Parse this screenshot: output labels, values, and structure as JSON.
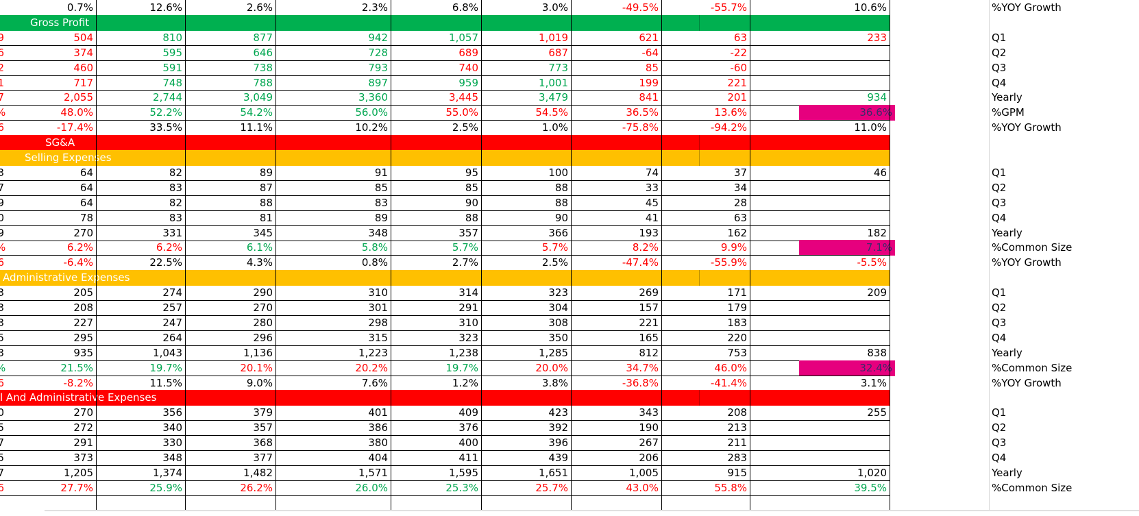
{
  "colors": {
    "green": "#00a650",
    "red": "#ff0000",
    "orange": "#ffc000",
    "black": "#000000",
    "highlight": "#e6007e",
    "banner_green": "#00b050",
    "banner_red": "#ff0000",
    "banner_orange": "#ffc000"
  },
  "rows": [
    {
      "kind": "data",
      "cells": [
        [
          "0.7%",
          "k"
        ],
        [
          "12.6%",
          "k"
        ],
        [
          "2.6%",
          "k"
        ],
        [
          "2.3%",
          "k"
        ],
        [
          "6.8%",
          "k"
        ],
        [
          "3.0%",
          "k"
        ],
        [
          "-49.5%",
          "r"
        ],
        [
          "-55.7%",
          "r"
        ],
        [
          "10.6%",
          "k"
        ]
      ],
      "label": "%YOY Growth",
      "edge": "",
      "bottom_border": false
    },
    {
      "kind": "banner",
      "text": "Gross Profit",
      "color": "banner_green",
      "text_left": 44
    },
    {
      "kind": "data",
      "cells": [
        [
          "504",
          "r"
        ],
        [
          "810",
          "g"
        ],
        [
          "877",
          "g"
        ],
        [
          "942",
          "g"
        ],
        [
          "1,057",
          "g"
        ],
        [
          "1,019",
          "r"
        ],
        [
          "621",
          "r"
        ],
        [
          "63",
          "r"
        ],
        [
          "233",
          "r"
        ]
      ],
      "label": "Q1",
      "edge": "9"
    },
    {
      "kind": "data",
      "cells": [
        [
          "374",
          "r"
        ],
        [
          "595",
          "g"
        ],
        [
          "646",
          "g"
        ],
        [
          "728",
          "g"
        ],
        [
          "689",
          "r"
        ],
        [
          "687",
          "r"
        ],
        [
          "-64",
          "r"
        ],
        [
          "-22",
          "r"
        ],
        [
          "",
          ""
        ]
      ],
      "label": "Q2",
      "edge": "6"
    },
    {
      "kind": "data",
      "cells": [
        [
          "460",
          "r"
        ],
        [
          "591",
          "g"
        ],
        [
          "738",
          "g"
        ],
        [
          "793",
          "g"
        ],
        [
          "740",
          "r"
        ],
        [
          "773",
          "g"
        ],
        [
          "85",
          "r"
        ],
        [
          "-60",
          "r"
        ],
        [
          "",
          ""
        ]
      ],
      "label": "Q3",
      "edge": "2"
    },
    {
      "kind": "data",
      "cells": [
        [
          "717",
          "r"
        ],
        [
          "748",
          "g"
        ],
        [
          "788",
          "g"
        ],
        [
          "897",
          "g"
        ],
        [
          "959",
          "g"
        ],
        [
          "1,001",
          "g"
        ],
        [
          "199",
          "r"
        ],
        [
          "221",
          "r"
        ],
        [
          "",
          ""
        ]
      ],
      "label": "Q4",
      "edge": "1"
    },
    {
      "kind": "data",
      "cells": [
        [
          "2,055",
          "r"
        ],
        [
          "2,744",
          "g"
        ],
        [
          "3,049",
          "g"
        ],
        [
          "3,360",
          "g"
        ],
        [
          "3,445",
          "r"
        ],
        [
          "3,479",
          "g"
        ],
        [
          "841",
          "r"
        ],
        [
          "201",
          "r"
        ],
        [
          "934",
          "g"
        ]
      ],
      "label": "Yearly",
      "edge": "7"
    },
    {
      "kind": "data",
      "cells": [
        [
          "48.0%",
          "r"
        ],
        [
          "52.2%",
          "g"
        ],
        [
          "54.2%",
          "g"
        ],
        [
          "56.0%",
          "g"
        ],
        [
          "55.0%",
          "r"
        ],
        [
          "54.5%",
          "r"
        ],
        [
          "36.5%",
          "r"
        ],
        [
          "13.6%",
          "r"
        ],
        [
          "36.6%",
          "k"
        ]
      ],
      "label": "%GPM",
      "edge": "%",
      "highlight": true
    },
    {
      "kind": "data",
      "cells": [
        [
          "-17.4%",
          "r"
        ],
        [
          "33.5%",
          "k"
        ],
        [
          "11.1%",
          "k"
        ],
        [
          "10.2%",
          "k"
        ],
        [
          "2.5%",
          "k"
        ],
        [
          "1.0%",
          "k"
        ],
        [
          "-75.8%",
          "r"
        ],
        [
          "-94.2%",
          "r"
        ],
        [
          "11.0%",
          "k"
        ]
      ],
      "label": "%YOY Growth",
      "edge": "6"
    },
    {
      "kind": "banner",
      "text": "SG&A",
      "color": "banner_red",
      "text_left": 66
    },
    {
      "kind": "banner",
      "text": "Selling Expenses",
      "color": "banner_orange",
      "text_left": 36
    },
    {
      "kind": "data",
      "cells": [
        [
          "64",
          "k"
        ],
        [
          "82",
          "k"
        ],
        [
          "89",
          "k"
        ],
        [
          "91",
          "k"
        ],
        [
          "95",
          "k"
        ],
        [
          "100",
          "k"
        ],
        [
          "74",
          "k"
        ],
        [
          "37",
          "k"
        ],
        [
          "46",
          "k"
        ]
      ],
      "label": "Q1",
      "edge": "3"
    },
    {
      "kind": "data",
      "cells": [
        [
          "64",
          "k"
        ],
        [
          "83",
          "k"
        ],
        [
          "87",
          "k"
        ],
        [
          "85",
          "k"
        ],
        [
          "85",
          "k"
        ],
        [
          "88",
          "k"
        ],
        [
          "33",
          "k"
        ],
        [
          "34",
          "k"
        ],
        [
          "",
          ""
        ]
      ],
      "label": "Q2",
      "edge": "7"
    },
    {
      "kind": "data",
      "cells": [
        [
          "64",
          "k"
        ],
        [
          "82",
          "k"
        ],
        [
          "88",
          "k"
        ],
        [
          "83",
          "k"
        ],
        [
          "90",
          "k"
        ],
        [
          "88",
          "k"
        ],
        [
          "45",
          "k"
        ],
        [
          "28",
          "k"
        ],
        [
          "",
          ""
        ]
      ],
      "label": "Q3",
      "edge": "9"
    },
    {
      "kind": "data",
      "cells": [
        [
          "78",
          "k"
        ],
        [
          "83",
          "k"
        ],
        [
          "81",
          "k"
        ],
        [
          "89",
          "k"
        ],
        [
          "88",
          "k"
        ],
        [
          "90",
          "k"
        ],
        [
          "41",
          "k"
        ],
        [
          "63",
          "k"
        ],
        [
          "",
          ""
        ]
      ],
      "label": "Q4",
      "edge": "0"
    },
    {
      "kind": "data",
      "cells": [
        [
          "270",
          "k"
        ],
        [
          "331",
          "k"
        ],
        [
          "345",
          "k"
        ],
        [
          "348",
          "k"
        ],
        [
          "357",
          "k"
        ],
        [
          "366",
          "k"
        ],
        [
          "193",
          "k"
        ],
        [
          "162",
          "k"
        ],
        [
          "182",
          "k"
        ]
      ],
      "label": "Yearly",
      "edge": "9"
    },
    {
      "kind": "data",
      "cells": [
        [
          "6.2%",
          "r"
        ],
        [
          "6.2%",
          "r"
        ],
        [
          "6.1%",
          "g"
        ],
        [
          "5.8%",
          "g"
        ],
        [
          "5.7%",
          "g"
        ],
        [
          "5.7%",
          "r"
        ],
        [
          "8.2%",
          "r"
        ],
        [
          "9.9%",
          "r"
        ],
        [
          "7.1%",
          "k"
        ]
      ],
      "label": "%Common Size",
      "edge": "%",
      "highlight": true
    },
    {
      "kind": "data",
      "cells": [
        [
          "-6.4%",
          "r"
        ],
        [
          "22.5%",
          "k"
        ],
        [
          "4.3%",
          "k"
        ],
        [
          "0.8%",
          "k"
        ],
        [
          "2.7%",
          "k"
        ],
        [
          "2.5%",
          "k"
        ],
        [
          "-47.4%",
          "r"
        ],
        [
          "-55.9%",
          "r"
        ],
        [
          "-5.5%",
          "r"
        ]
      ],
      "label": "%YOY Growth",
      "edge": "6"
    },
    {
      "kind": "banner",
      "text": "Administrative Expenses",
      "color": "banner_orange",
      "text_left": 4
    },
    {
      "kind": "data",
      "cells": [
        [
          "205",
          "k"
        ],
        [
          "274",
          "k"
        ],
        [
          "290",
          "k"
        ],
        [
          "310",
          "k"
        ],
        [
          "314",
          "k"
        ],
        [
          "323",
          "k"
        ],
        [
          "269",
          "k"
        ],
        [
          "171",
          "k"
        ],
        [
          "209",
          "k"
        ]
      ],
      "label": "Q1",
      "edge": "3"
    },
    {
      "kind": "data",
      "cells": [
        [
          "208",
          "k"
        ],
        [
          "257",
          "k"
        ],
        [
          "270",
          "k"
        ],
        [
          "301",
          "k"
        ],
        [
          "291",
          "k"
        ],
        [
          "304",
          "k"
        ],
        [
          "157",
          "k"
        ],
        [
          "179",
          "k"
        ],
        [
          "",
          ""
        ]
      ],
      "label": "Q2",
      "edge": "3"
    },
    {
      "kind": "data",
      "cells": [
        [
          "227",
          "k"
        ],
        [
          "247",
          "k"
        ],
        [
          "280",
          "k"
        ],
        [
          "298",
          "k"
        ],
        [
          "310",
          "k"
        ],
        [
          "308",
          "k"
        ],
        [
          "221",
          "k"
        ],
        [
          "183",
          "k"
        ],
        [
          "",
          ""
        ]
      ],
      "label": "Q3",
      "edge": "3"
    },
    {
      "kind": "data",
      "cells": [
        [
          "295",
          "k"
        ],
        [
          "264",
          "k"
        ],
        [
          "296",
          "k"
        ],
        [
          "315",
          "k"
        ],
        [
          "323",
          "k"
        ],
        [
          "350",
          "k"
        ],
        [
          "165",
          "k"
        ],
        [
          "220",
          "k"
        ],
        [
          "",
          ""
        ]
      ],
      "label": "Q4",
      "edge": "5"
    },
    {
      "kind": "data",
      "cells": [
        [
          "935",
          "k"
        ],
        [
          "1,043",
          "k"
        ],
        [
          "1,136",
          "k"
        ],
        [
          "1,223",
          "k"
        ],
        [
          "1,238",
          "k"
        ],
        [
          "1,285",
          "k"
        ],
        [
          "812",
          "k"
        ],
        [
          "753",
          "k"
        ],
        [
          "838",
          "k"
        ]
      ],
      "label": "Yearly",
      "edge": "3"
    },
    {
      "kind": "data",
      "cells": [
        [
          "21.5%",
          "g"
        ],
        [
          "19.7%",
          "g"
        ],
        [
          "20.1%",
          "r"
        ],
        [
          "20.2%",
          "r"
        ],
        [
          "19.7%",
          "g"
        ],
        [
          "20.0%",
          "r"
        ],
        [
          "34.7%",
          "r"
        ],
        [
          "46.0%",
          "r"
        ],
        [
          "32.4%",
          "k"
        ]
      ],
      "label": "%Common Size",
      "edge": "%",
      "highlight": true
    },
    {
      "kind": "data",
      "cells": [
        [
          "-8.2%",
          "r"
        ],
        [
          "11.5%",
          "k"
        ],
        [
          "9.0%",
          "k"
        ],
        [
          "7.6%",
          "k"
        ],
        [
          "1.2%",
          "k"
        ],
        [
          "3.8%",
          "k"
        ],
        [
          "-36.8%",
          "r"
        ],
        [
          "-41.4%",
          "r"
        ],
        [
          "3.1%",
          "k"
        ]
      ],
      "label": "%YOY Growth",
      "edge": "6"
    },
    {
      "kind": "banner",
      "text": "l And Administrative Expenses",
      "color": "banner_red",
      "text_left": 0
    },
    {
      "kind": "data",
      "cells": [
        [
          "270",
          "k"
        ],
        [
          "356",
          "k"
        ],
        [
          "379",
          "k"
        ],
        [
          "401",
          "k"
        ],
        [
          "409",
          "k"
        ],
        [
          "423",
          "k"
        ],
        [
          "343",
          "k"
        ],
        [
          "208",
          "k"
        ],
        [
          "255",
          "k"
        ]
      ],
      "label": "Q1",
      "edge": "0"
    },
    {
      "kind": "data",
      "cells": [
        [
          "272",
          "k"
        ],
        [
          "340",
          "k"
        ],
        [
          "357",
          "k"
        ],
        [
          "386",
          "k"
        ],
        [
          "376",
          "k"
        ],
        [
          "392",
          "k"
        ],
        [
          "190",
          "k"
        ],
        [
          "213",
          "k"
        ],
        [
          "",
          ""
        ]
      ],
      "label": "Q2",
      "edge": "5"
    },
    {
      "kind": "data",
      "cells": [
        [
          "291",
          "k"
        ],
        [
          "330",
          "k"
        ],
        [
          "368",
          "k"
        ],
        [
          "380",
          "k"
        ],
        [
          "400",
          "k"
        ],
        [
          "396",
          "k"
        ],
        [
          "267",
          "k"
        ],
        [
          "211",
          "k"
        ],
        [
          "",
          ""
        ]
      ],
      "label": "Q3",
      "edge": "7"
    },
    {
      "kind": "data",
      "cells": [
        [
          "373",
          "k"
        ],
        [
          "348",
          "k"
        ],
        [
          "377",
          "k"
        ],
        [
          "404",
          "k"
        ],
        [
          "411",
          "k"
        ],
        [
          "439",
          "k"
        ],
        [
          "206",
          "k"
        ],
        [
          "283",
          "k"
        ],
        [
          "",
          ""
        ]
      ],
      "label": "Q4",
      "edge": "5"
    },
    {
      "kind": "data",
      "cells": [
        [
          "1,205",
          "k"
        ],
        [
          "1,374",
          "k"
        ],
        [
          "1,482",
          "k"
        ],
        [
          "1,571",
          "k"
        ],
        [
          "1,595",
          "k"
        ],
        [
          "1,651",
          "k"
        ],
        [
          "1,005",
          "k"
        ],
        [
          "915",
          "k"
        ],
        [
          "1,020",
          "k"
        ]
      ],
      "label": "Yearly",
      "edge": "7"
    },
    {
      "kind": "data",
      "cells": [
        [
          "27.7%",
          "r"
        ],
        [
          "25.9%",
          "g"
        ],
        [
          "26.2%",
          "r"
        ],
        [
          "26.0%",
          "g"
        ],
        [
          "25.3%",
          "g"
        ],
        [
          "25.7%",
          "r"
        ],
        [
          "43.0%",
          "r"
        ],
        [
          "55.8%",
          "r"
        ],
        [
          "39.5%",
          "g"
        ]
      ],
      "label": "%Common Size",
      "edge": "6"
    }
  ]
}
